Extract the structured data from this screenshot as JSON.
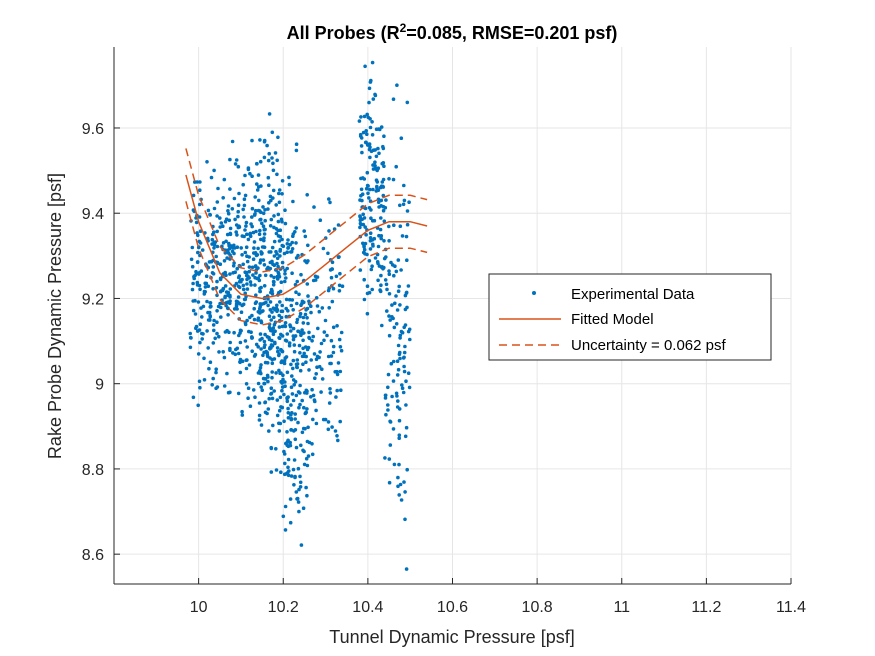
{
  "chart_data": {
    "type": "scatter",
    "title_main": "All Probes (R",
    "title_sup": "2",
    "title_rest": "=0.085, RMSE=0.201 psf)",
    "xlabel": "Tunnel Dynamic Pressure [psf]",
    "ylabel": "Rake Probe Dynamic Pressure [psf]",
    "xlim": [
      9.8,
      11.4
    ],
    "ylim": [
      8.53,
      9.79
    ],
    "xticks": [
      10,
      10.2,
      10.4,
      10.6,
      10.8,
      11,
      11.2,
      11.4
    ],
    "xtick_labels": [
      "10",
      "10.2",
      "10.4",
      "10.6",
      "10.8",
      "11",
      "11.2",
      "11.4"
    ],
    "yticks": [
      8.6,
      8.8,
      9,
      9.2,
      9.4,
      9.6
    ],
    "ytick_labels": [
      "8.6",
      "8.8",
      "9",
      "9.2",
      "9.4",
      "9.6"
    ],
    "grid": true,
    "legend_position": "right",
    "colors": {
      "data": "#0072BD",
      "model": "#D95319",
      "axes": "#262626",
      "grid": "#e6e6e6"
    },
    "series": [
      {
        "name": "Experimental Data",
        "kind": "points",
        "clusters": [
          {
            "x": [
              9.98,
              10.06
            ],
            "y": [
              8.95,
              9.52
            ],
            "n": 180
          },
          {
            "x": [
              10.06,
              10.14
            ],
            "y": [
              8.95,
              9.58
            ],
            "n": 240
          },
          {
            "x": [
              10.14,
              10.2
            ],
            "y": [
              8.75,
              9.6
            ],
            "n": 300
          },
          {
            "x": [
              10.2,
              10.26
            ],
            "y": [
              8.55,
              9.52
            ],
            "n": 230
          },
          {
            "x": [
              10.26,
              10.34
            ],
            "y": [
              8.8,
              9.45
            ],
            "n": 110
          },
          {
            "x": [
              10.38,
              10.44
            ],
            "y": [
              9.1,
              9.78
            ],
            "n": 170
          },
          {
            "x": [
              10.44,
              10.5
            ],
            "y": [
              8.55,
              9.7
            ],
            "n": 130
          }
        ]
      },
      {
        "name": "Fitted Model",
        "kind": "line",
        "x": [
          9.97,
          10.0,
          10.05,
          10.1,
          10.15,
          10.2,
          10.25,
          10.3,
          10.35,
          10.4,
          10.45,
          10.5,
          10.54
        ],
        "y": [
          9.49,
          9.38,
          9.26,
          9.21,
          9.2,
          9.21,
          9.24,
          9.28,
          9.32,
          9.36,
          9.38,
          9.38,
          9.37
        ]
      },
      {
        "name": "Uncertainty = 0.062 psf",
        "kind": "band",
        "x": [
          9.97,
          10.0,
          10.05,
          10.1,
          10.15,
          10.2,
          10.25,
          10.3,
          10.35,
          10.4,
          10.45,
          10.5,
          10.54
        ],
        "upper": [
          9.552,
          9.442,
          9.322,
          9.272,
          9.262,
          9.272,
          9.302,
          9.342,
          9.382,
          9.422,
          9.442,
          9.442,
          9.432
        ],
        "lower": [
          9.428,
          9.318,
          9.198,
          9.148,
          9.138,
          9.148,
          9.178,
          9.218,
          9.258,
          9.298,
          9.318,
          9.318,
          9.308
        ]
      }
    ]
  }
}
